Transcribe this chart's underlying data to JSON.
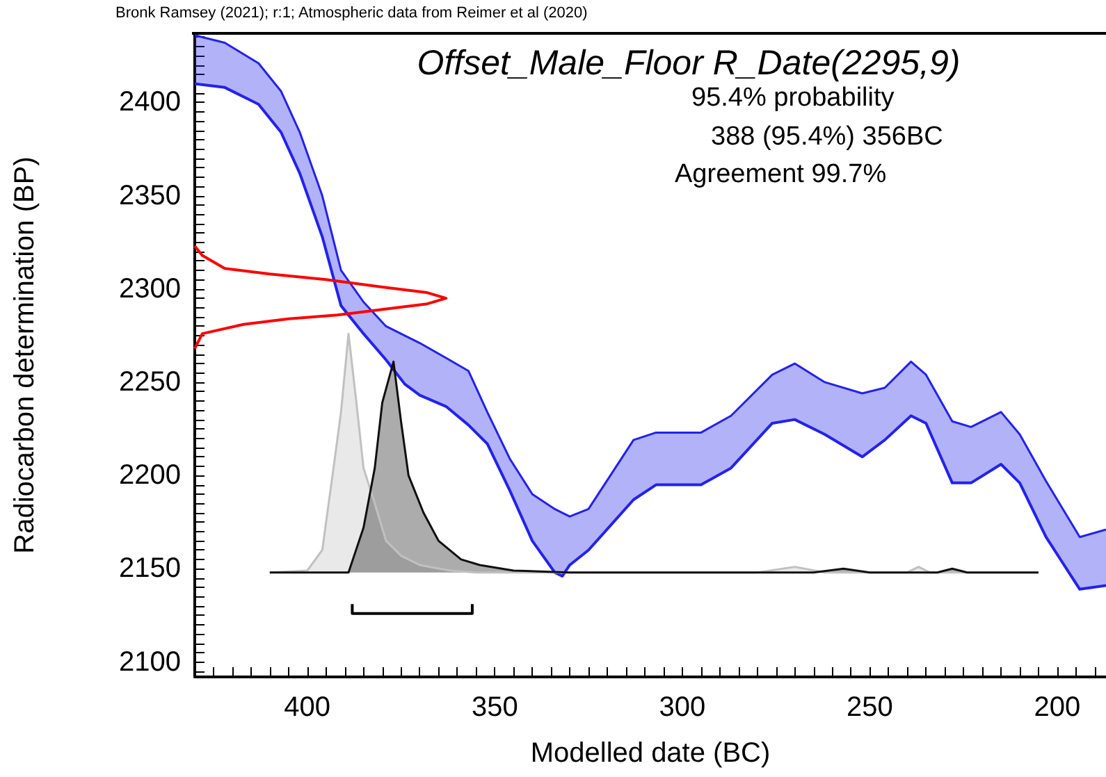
{
  "chart_data": {
    "type": "line",
    "title": "Offset_Male_Floor R_Date(2295,9)",
    "xlabel": "Modelled date (BC)",
    "ylabel": "Radiocarbon determination (BP)",
    "annotations": [
      "Bronk Ramsey (2021); r:1; Atmospheric data from Reimer et al (2020)",
      "95.4% probability",
      "388 (95.4%) 356BC",
      "Agreement 99.7%"
    ],
    "xlim": [
      430,
      187
    ],
    "ylim": [
      2092,
      2437
    ],
    "xticks": [
      {
        "value": 425,
        "label": null
      },
      {
        "value": 420,
        "label": null
      },
      {
        "value": 415,
        "label": null
      },
      {
        "value": 410,
        "label": null
      },
      {
        "value": 405,
        "label": null
      },
      400,
      {
        "value": 395,
        "label": null
      },
      {
        "value": 390,
        "label": null
      },
      {
        "value": 385,
        "label": null
      },
      {
        "value": 380,
        "label": null
      },
      {
        "value": 375,
        "label": null
      },
      {
        "value": 370,
        "label": null
      },
      {
        "value": 365,
        "label": null
      },
      {
        "value": 360,
        "label": null
      },
      {
        "value": 355,
        "label": null
      },
      350,
      {
        "value": 345,
        "label": null
      },
      {
        "value": 340,
        "label": null
      },
      {
        "value": 335,
        "label": null
      },
      {
        "value": 330,
        "label": null
      },
      {
        "value": 325,
        "label": null
      },
      {
        "value": 320,
        "label": null
      },
      {
        "value": 315,
        "label": null
      },
      {
        "value": 310,
        "label": null
      },
      {
        "value": 305,
        "label": null
      },
      300,
      {
        "value": 295,
        "label": null
      },
      {
        "value": 290,
        "label": null
      },
      {
        "value": 285,
        "label": null
      },
      {
        "value": 280,
        "label": null
      },
      {
        "value": 275,
        "label": null
      },
      {
        "value": 270,
        "label": null
      },
      {
        "value": 265,
        "label": null
      },
      {
        "value": 260,
        "label": null
      },
      {
        "value": 255,
        "label": null
      },
      250,
      {
        "value": 245,
        "label": null
      },
      {
        "value": 240,
        "label": null
      },
      {
        "value": 235,
        "label": null
      },
      {
        "value": 230,
        "label": null
      },
      {
        "value": 225,
        "label": null
      },
      {
        "value": 220,
        "label": null
      },
      {
        "value": 215,
        "label": null
      },
      {
        "value": 210,
        "label": null
      },
      {
        "value": 205,
        "label": null
      },
      200,
      {
        "value": 195,
        "label": null
      },
      {
        "value": 190,
        "label": null
      }
    ],
    "yticks": [
      {
        "value": 2095,
        "label": null
      },
      2100,
      {
        "value": 2105,
        "label": null
      },
      {
        "value": 2110,
        "label": null
      },
      {
        "value": 2115,
        "label": null
      },
      {
        "value": 2120,
        "label": null
      },
      {
        "value": 2125,
        "label": null
      },
      {
        "value": 2130,
        "label": null
      },
      {
        "value": 2135,
        "label": null
      },
      {
        "value": 2140,
        "label": null
      },
      {
        "value": 2145,
        "label": null
      },
      2150,
      {
        "value": 2155,
        "label": null
      },
      {
        "value": 2160,
        "label": null
      },
      {
        "value": 2165,
        "label": null
      },
      {
        "value": 2170,
        "label": null
      },
      {
        "value": 2175,
        "label": null
      },
      {
        "value": 2180,
        "label": null
      },
      {
        "value": 2185,
        "label": null
      },
      {
        "value": 2190,
        "label": null
      },
      {
        "value": 2195,
        "label": null
      },
      2200,
      {
        "value": 2205,
        "label": null
      },
      {
        "value": 2210,
        "label": null
      },
      {
        "value": 2215,
        "label": null
      },
      {
        "value": 2220,
        "label": null
      },
      {
        "value": 2225,
        "label": null
      },
      {
        "value": 2230,
        "label": null
      },
      {
        "value": 2235,
        "label": null
      },
      {
        "value": 2240,
        "label": null
      },
      {
        "value": 2245,
        "label": null
      },
      2250,
      {
        "value": 2255,
        "label": null
      },
      {
        "value": 2260,
        "label": null
      },
      {
        "value": 2265,
        "label": null
      },
      {
        "value": 2270,
        "label": null
      },
      {
        "value": 2275,
        "label": null
      },
      {
        "value": 2280,
        "label": null
      },
      {
        "value": 2285,
        "label": null
      },
      {
        "value": 2290,
        "label": null
      },
      {
        "value": 2295,
        "label": null
      },
      2300,
      {
        "value": 2305,
        "label": null
      },
      {
        "value": 2310,
        "label": null
      },
      {
        "value": 2315,
        "label": null
      },
      {
        "value": 2320,
        "label": null
      },
      {
        "value": 2325,
        "label": null
      },
      {
        "value": 2330,
        "label": null
      },
      {
        "value": 2335,
        "label": null
      },
      {
        "value": 2340,
        "label": null
      },
      {
        "value": 2345,
        "label": null
      },
      2350,
      {
        "value": 2355,
        "label": null
      },
      {
        "value": 2360,
        "label": null
      },
      {
        "value": 2365,
        "label": null
      },
      {
        "value": 2370,
        "label": null
      },
      {
        "value": 2375,
        "label": null
      },
      {
        "value": 2380,
        "label": null
      },
      {
        "value": 2385,
        "label": null
      },
      {
        "value": 2390,
        "label": null
      },
      {
        "value": 2395,
        "label": null
      },
      2400,
      {
        "value": 2405,
        "label": null
      },
      {
        "value": 2410,
        "label": null
      },
      {
        "value": 2415,
        "label": null
      },
      {
        "value": 2420,
        "label": null
      },
      {
        "value": 2425,
        "label": null
      },
      {
        "value": 2430,
        "label": null
      },
      {
        "value": 2435,
        "label": null
      }
    ],
    "series": [
      {
        "color": "#2222ee",
        "x": [
          430,
          422,
          413,
          407,
          402,
          396,
          391,
          385,
          379,
          374,
          370,
          363,
          357,
          352,
          346,
          340,
          334,
          332,
          330,
          325,
          313,
          307,
          295,
          287,
          276,
          270,
          262,
          252,
          246,
          239,
          235,
          228,
          223,
          215,
          210,
          203,
          194,
          187
        ],
        "values": [
          2436,
          2432,
          2421,
          2406,
          2384,
          2350,
          2310,
          2293,
          2280,
          2275,
          2271,
          2263,
          2256,
          2234,
          2209,
          2190,
          2182,
          2180,
          2178,
          2182,
          2219,
          2223,
          2223,
          2232,
          2254,
          2260,
          2250,
          2244,
          2247,
          2261,
          2254,
          2229,
          2226,
          2234,
          2222,
          2197,
          2167,
          2171
        ],
        "upper": [
          2436,
          2432,
          2421,
          2406,
          2384,
          2350,
          2310,
          2293,
          2280,
          2275,
          2271,
          2263,
          2256,
          2234,
          2209,
          2190,
          2182,
          2180,
          2178,
          2182,
          2219,
          2223,
          2223,
          2232,
          2254,
          2260,
          2250,
          2244,
          2247,
          2261,
          2254,
          2229,
          2226,
          2234,
          2222,
          2197,
          2167,
          2171
        ],
        "lower": [
          2410,
          2408,
          2399,
          2384,
          2362,
          2328,
          2291,
          2276,
          2262,
          2249,
          2243,
          2237,
          2227,
          2217,
          2192,
          2165,
          2148,
          2146,
          2152,
          2160,
          2187,
          2195,
          2195,
          2204,
          2228,
          2230,
          2222,
          2210,
          2219,
          2232,
          2228,
          2196,
          2196,
          2206,
          2196,
          2167,
          2139,
          2141
        ]
      },
      {
        "color": "#2222ee",
        "x": [
          430,
          422,
          413,
          407,
          402,
          396,
          391,
          385,
          379,
          374,
          370,
          363,
          357,
          352,
          346,
          340,
          334,
          332,
          330,
          325,
          313,
          307,
          295,
          287,
          276,
          270,
          262,
          252,
          246,
          239,
          235,
          228,
          223,
          215,
          210,
          203,
          194,
          187
        ],
        "values": [
          2410,
          2408,
          2399,
          2384,
          2362,
          2328,
          2291,
          2276,
          2262,
          2249,
          2243,
          2237,
          2227,
          2217,
          2192,
          2165,
          2148,
          2146,
          2152,
          2160,
          2187,
          2195,
          2195,
          2204,
          2228,
          2230,
          2222,
          2210,
          2219,
          2232,
          2228,
          2196,
          2196,
          2206,
          2196,
          2167,
          2139,
          2141
        ]
      },
      {
        "color": "#ff0000",
        "x": [
          430,
          428,
          422,
          410,
          395,
          380,
          368,
          363,
          368,
          380,
          392,
          405,
          417,
          428,
          430
        ],
        "values": [
          2323,
          2318,
          2311,
          2308,
          2305,
          2301,
          2298,
          2295,
          2292,
          2289,
          2286,
          2284,
          2281,
          2276,
          2268
        ]
      },
      {
        "color": "#c0c0c0",
        "x": [
          410,
          400,
          396,
          393,
          391,
          389,
          387,
          385,
          382,
          379,
          375,
          370,
          362,
          355,
          280,
          270,
          262,
          240,
          237,
          234,
          205
        ],
        "values": [
          2148,
          2149,
          2160,
          2204,
          2234,
          2276,
          2241,
          2204,
          2185,
          2165,
          2157,
          2152,
          2149,
          2148,
          2148,
          2151,
          2148,
          2148,
          2151,
          2148,
          2148
        ],
        "upper": [
          2148,
          2149,
          2160,
          2204,
          2234,
          2276,
          2241,
          2204,
          2185,
          2165,
          2157,
          2152,
          2149,
          2148,
          2148,
          2151,
          2148,
          2148,
          2151,
          2148,
          2148
        ],
        "lower": [
          2148,
          2148,
          2148,
          2148,
          2148,
          2148,
          2148,
          2148,
          2148,
          2148,
          2148,
          2148,
          2148,
          2148,
          2148,
          2148,
          2148,
          2148,
          2148,
          2148,
          2148
        ]
      },
      {
        "color": "#101010",
        "x": [
          410,
          389,
          385,
          382,
          380,
          377,
          375,
          373,
          369,
          365,
          359,
          354,
          345,
          330,
          265,
          257,
          250,
          232,
          228,
          224,
          205
        ],
        "values": [
          2148,
          2148,
          2172,
          2204,
          2239,
          2261,
          2229,
          2200,
          2180,
          2165,
          2155,
          2152,
          2149,
          2148,
          2148,
          2150,
          2148,
          2148,
          2150,
          2148,
          2148
        ],
        "upper": [
          2148,
          2148,
          2172,
          2204,
          2239,
          2261,
          2229,
          2200,
          2180,
          2165,
          2155,
          2152,
          2149,
          2148,
          2148,
          2150,
          2148,
          2148,
          2150,
          2148,
          2148
        ],
        "lower": [
          2148,
          2148,
          2148,
          2148,
          2148,
          2148,
          2148,
          2148,
          2148,
          2148,
          2148,
          2148,
          2148,
          2148,
          2148,
          2148,
          2148,
          2148,
          2148,
          2148,
          2148
        ]
      },
      {
        "color": "#000000",
        "x": [
          388,
          388,
          356,
          356
        ],
        "values": [
          2131,
          2126,
          2126,
          2131
        ]
      }
    ]
  }
}
